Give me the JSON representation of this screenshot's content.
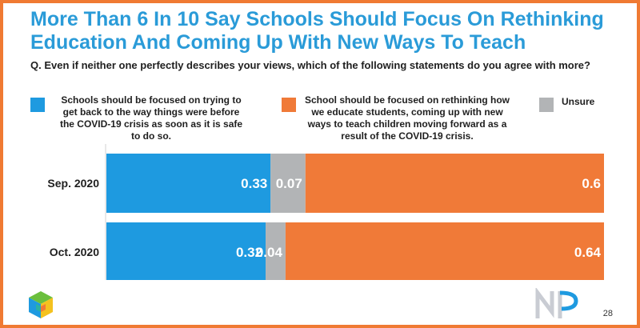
{
  "title": "More Than 6 In 10 Say Schools Should Focus On Rethinking Education And Coming Up With New Ways To Teach",
  "question": "Q. Even if neither one perfectly describes your views, which of the following statements do you agree with more?",
  "page_number": "28",
  "colors": {
    "blue": "#1e9ae0",
    "gray": "#b2b4b6",
    "orange": "#f07a38",
    "title": "#2a9bd8",
    "frame": "#f07a33"
  },
  "legend": [
    {
      "label": "Schools should be focused on trying to get back to the way things were before the COVID-19 crisis as soon as it is safe to do so.",
      "color": "#1e9ae0"
    },
    {
      "label": "School should be focused on rethinking how we educate students, coming up with new ways to teach children moving forward as a result of the COVID-19 crisis.",
      "color": "#f07a38"
    },
    {
      "label": "Unsure",
      "color": "#b2b4b6"
    }
  ],
  "chart_data": {
    "type": "bar",
    "orientation": "horizontal",
    "stacked": true,
    "categories": [
      "Sep. 2020",
      "Oct. 2020"
    ],
    "series": [
      {
        "name": "Schools should be focused on trying to get back to the way things were before the COVID-19 crisis as soon as it is safe to do so.",
        "color": "#1e9ae0",
        "values": [
          0.33,
          0.32
        ],
        "labels": [
          "0.33",
          "0.32"
        ]
      },
      {
        "name": "Unsure",
        "color": "#b2b4b6",
        "values": [
          0.07,
          0.04
        ],
        "labels": [
          "0.07",
          "0.04"
        ]
      },
      {
        "name": "School should be focused on rethinking how we educate students, coming up with new ways to teach children moving forward as a result of the COVID-19 crisis.",
        "color": "#f07a38",
        "values": [
          0.6,
          0.64
        ],
        "labels": [
          "0.6",
          "0.64"
        ]
      }
    ],
    "xlim": [
      0,
      1
    ],
    "grid": false,
    "legend_position": "top"
  }
}
